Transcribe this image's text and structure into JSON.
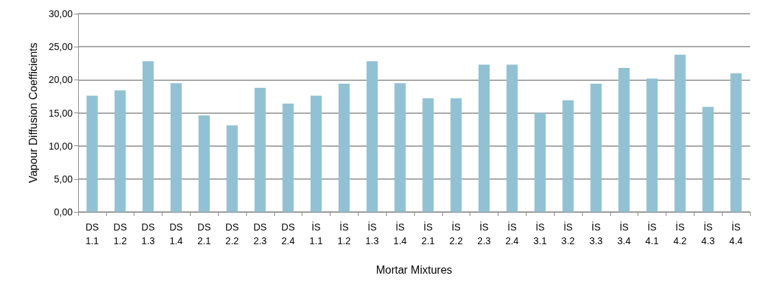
{
  "chart_data": {
    "type": "bar",
    "xlabel": "Mortar Mixtures",
    "ylabel": "Vapour Diffusion Coefficients",
    "categories": [
      "DS 1.1",
      "DS 1.2",
      "DS 1.3",
      "DS 1.4",
      "DS 2.1",
      "DS 2.2",
      "DS 2.3",
      "DS 2.4",
      "İS 1.1",
      "İS 1.2",
      "İS 1.3",
      "İS 1.4",
      "İS 2.1",
      "İS 2.2",
      "İS 2.3",
      "İS 2.4",
      "İS 3.1",
      "İS 3.2",
      "İS 3.3",
      "İS 3.4",
      "İS 4.1",
      "İS 4.2",
      "İS 4.3",
      "İS 4.4"
    ],
    "values": [
      17.6,
      18.4,
      22.8,
      19.5,
      14.6,
      13.1,
      18.8,
      16.4,
      17.6,
      19.4,
      22.8,
      19.5,
      17.2,
      17.2,
      22.3,
      22.3,
      15.0,
      16.9,
      19.4,
      21.8,
      20.2,
      23.8,
      15.9,
      21.0
    ],
    "color": "#92c1d3",
    "ylim": [
      0,
      30
    ],
    "yticks": [
      {
        "value": 0,
        "label": "0,00"
      },
      {
        "value": 5,
        "label": "5,00"
      },
      {
        "value": 10,
        "label": "10,00"
      },
      {
        "value": 15,
        "label": "15,00"
      },
      {
        "value": 20,
        "label": "20,00"
      },
      {
        "value": 25,
        "label": "25,00"
      },
      {
        "value": 30,
        "label": "30,00"
      }
    ],
    "grid": "y"
  }
}
